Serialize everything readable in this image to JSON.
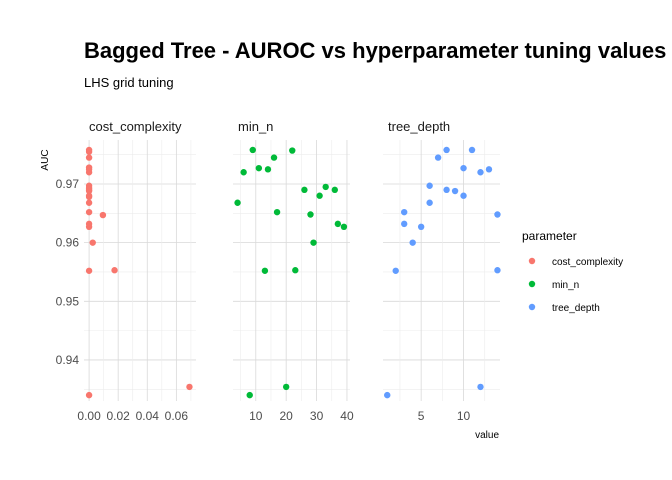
{
  "chart_data": {
    "type": "scatter",
    "title": "Bagged Tree - AUROC vs hyperparameter tuning values",
    "subtitle": "LHS grid tuning",
    "xlabel": "value",
    "ylabel": "AUC",
    "ylim": [
      0.933,
      0.9775
    ],
    "y_ticks": [
      0.94,
      0.95,
      0.96,
      0.97
    ],
    "grid": true,
    "legend_title": "parameter",
    "legend_position": "right",
    "facets": [
      {
        "name": "cost_complexity",
        "color": "#F8766D",
        "xlim": [
          -0.0035,
          0.0735
        ],
        "x_ticks": [
          0.0,
          0.02,
          0.04,
          0.06
        ],
        "x_tick_labels": [
          "0.00",
          "0.02",
          "0.04",
          "0.06"
        ],
        "points": [
          {
            "x": 0.0,
            "y": 0.9758
          },
          {
            "x": 0.0,
            "y": 0.9755
          },
          {
            "x": 0.0,
            "y": 0.9745
          },
          {
            "x": 0.0,
            "y": 0.9728
          },
          {
            "x": 0.0,
            "y": 0.9725
          },
          {
            "x": 0.0,
            "y": 0.972
          },
          {
            "x": 0.0,
            "y": 0.9697
          },
          {
            "x": 0.0,
            "y": 0.9693
          },
          {
            "x": 0.0,
            "y": 0.969
          },
          {
            "x": 0.0,
            "y": 0.9688
          },
          {
            "x": 0.0,
            "y": 0.968
          },
          {
            "x": 0.0,
            "y": 0.9678
          },
          {
            "x": 0.0,
            "y": 0.9668
          },
          {
            "x": 0.0,
            "y": 0.9652
          },
          {
            "x": 0.0,
            "y": 0.9632
          },
          {
            "x": 0.0,
            "y": 0.9627
          },
          {
            "x": 0.0,
            "y": 0.9552
          },
          {
            "x": 0.0,
            "y": 0.934
          },
          {
            "x": 0.0025,
            "y": 0.96
          },
          {
            "x": 0.0095,
            "y": 0.9647
          },
          {
            "x": 0.0175,
            "y": 0.9553
          },
          {
            "x": 0.069,
            "y": 0.9354
          }
        ]
      },
      {
        "name": "min_n",
        "color": "#00BA38",
        "xlim": [
          2.5,
          41
        ],
        "x_ticks": [
          10,
          20,
          30,
          40
        ],
        "x_tick_labels": [
          "10",
          "20",
          "30",
          "40"
        ],
        "points": [
          {
            "x": 4,
            "y": 0.9668
          },
          {
            "x": 6,
            "y": 0.972
          },
          {
            "x": 8,
            "y": 0.934
          },
          {
            "x": 9,
            "y": 0.9758
          },
          {
            "x": 11,
            "y": 0.9727
          },
          {
            "x": 13,
            "y": 0.9552
          },
          {
            "x": 14,
            "y": 0.9725
          },
          {
            "x": 16,
            "y": 0.9745
          },
          {
            "x": 17,
            "y": 0.9652
          },
          {
            "x": 20,
            "y": 0.9354
          },
          {
            "x": 22,
            "y": 0.9757
          },
          {
            "x": 23,
            "y": 0.9553
          },
          {
            "x": 26,
            "y": 0.969
          },
          {
            "x": 28,
            "y": 0.9648
          },
          {
            "x": 29,
            "y": 0.96
          },
          {
            "x": 31,
            "y": 0.968
          },
          {
            "x": 33,
            "y": 0.9695
          },
          {
            "x": 36,
            "y": 0.969
          },
          {
            "x": 37,
            "y": 0.9632
          },
          {
            "x": 39,
            "y": 0.9627
          }
        ]
      },
      {
        "name": "tree_depth",
        "color": "#619CFF",
        "xlim": [
          0.5,
          14.3
        ],
        "x_ticks": [
          5,
          10
        ],
        "x_tick_labels": [
          "5",
          "10"
        ],
        "points": [
          {
            "x": 1,
            "y": 0.934
          },
          {
            "x": 2,
            "y": 0.9552
          },
          {
            "x": 3,
            "y": 0.9652
          },
          {
            "x": 3,
            "y": 0.9632
          },
          {
            "x": 4,
            "y": 0.96
          },
          {
            "x": 5,
            "y": 0.9627
          },
          {
            "x": 6,
            "y": 0.9697
          },
          {
            "x": 6,
            "y": 0.9668
          },
          {
            "x": 7,
            "y": 0.9745
          },
          {
            "x": 8,
            "y": 0.9758
          },
          {
            "x": 8,
            "y": 0.969
          },
          {
            "x": 9,
            "y": 0.9688
          },
          {
            "x": 10,
            "y": 0.9727
          },
          {
            "x": 10,
            "y": 0.968
          },
          {
            "x": 11,
            "y": 0.9758
          },
          {
            "x": 12,
            "y": 0.972
          },
          {
            "x": 12,
            "y": 0.9354
          },
          {
            "x": 13,
            "y": 0.9725
          },
          {
            "x": 14,
            "y": 0.9648
          },
          {
            "x": 14,
            "y": 0.9553
          }
        ]
      }
    ]
  }
}
